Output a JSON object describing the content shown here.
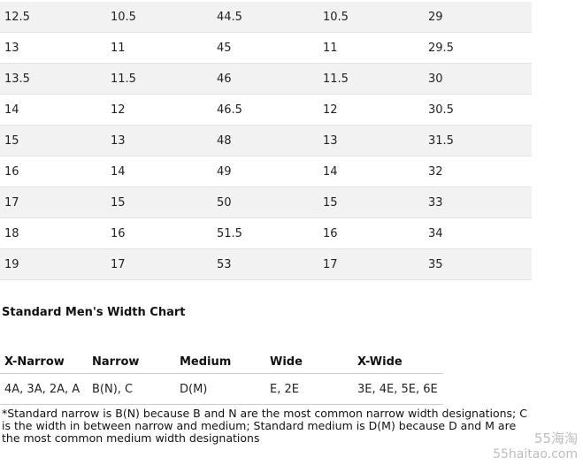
{
  "size_chart": {
    "rows": [
      [
        "12.5",
        "10.5",
        "44.5",
        "10.5",
        "29"
      ],
      [
        "13",
        "11",
        "45",
        "11",
        "29.5"
      ],
      [
        "13.5",
        "11.5",
        "46",
        "11.5",
        "30"
      ],
      [
        "14",
        "12",
        "46.5",
        "12",
        "30.5"
      ],
      [
        "15",
        "13",
        "48",
        "13",
        "31.5"
      ],
      [
        "16",
        "14",
        "49",
        "14",
        "32"
      ],
      [
        "17",
        "15",
        "50",
        "15",
        "33"
      ],
      [
        "18",
        "16",
        "51.5",
        "16",
        "34"
      ],
      [
        "19",
        "17",
        "53",
        "17",
        "35"
      ]
    ]
  },
  "width_chart": {
    "heading": "Standard Men's Width Chart",
    "headers": [
      "X-Narrow",
      "Narrow",
      "Medium",
      "Wide",
      "X-Wide"
    ],
    "values": [
      "4A, 3A, 2A, A",
      "B(N), C",
      "D(M)",
      "E, 2E",
      "3E, 4E, 5E, 6E"
    ],
    "footnote": "*Standard narrow is B(N) because B and N are the most common narrow width designations; C is the width in between narrow and medium; Standard medium is D(M) because D and M are the most common medium width designations"
  },
  "watermark": {
    "top": "55海淘",
    "bottom": "55haitao.com"
  }
}
